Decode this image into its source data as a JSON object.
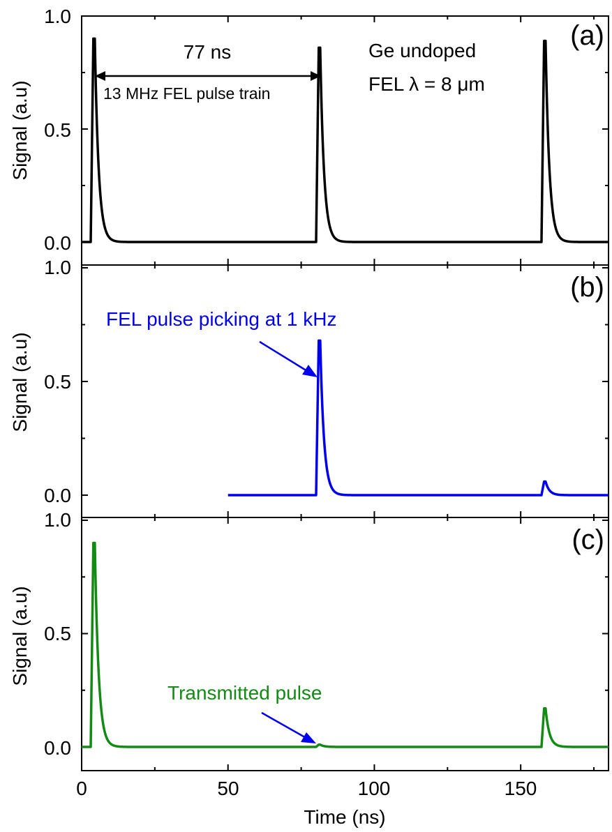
{
  "chart_data": [
    {
      "type": "line",
      "panel_label": "(a)",
      "xlim": [
        0,
        180
      ],
      "ylim": [
        0,
        1.0
      ],
      "ylabel": "Signal (a.u)",
      "xlabel": "",
      "y_ticks": [
        "1.0",
        "0.5",
        "0.0"
      ],
      "color": "#000000",
      "baseline_start": 0,
      "pulses": [
        {
          "t": 4,
          "amplitude": 0.9
        },
        {
          "t": 81,
          "amplitude": 0.86
        },
        {
          "t": 158,
          "amplitude": 0.89
        }
      ],
      "annotations": {
        "period": "77 ns",
        "train": "13 MHz FEL pulse train",
        "sample": "Ge undoped",
        "wavelength": "FEL λ = 8 μm"
      }
    },
    {
      "type": "line",
      "panel_label": "(b)",
      "xlim": [
        0,
        180
      ],
      "ylim": [
        0,
        1.0
      ],
      "ylabel": "Signal (a.u)",
      "xlabel": "",
      "y_ticks": [
        "1.0",
        "0.5",
        "0.0"
      ],
      "color": "#0000ee",
      "baseline_start": 50,
      "pulses": [
        {
          "t": 81,
          "amplitude": 0.68
        },
        {
          "t": 158,
          "amplitude": 0.06
        }
      ],
      "annotations": {
        "picking": "FEL pulse picking at 1 kHz"
      }
    },
    {
      "type": "line",
      "panel_label": "(c)",
      "xlim": [
        0,
        180
      ],
      "ylim": [
        0,
        1.0
      ],
      "ylabel": "Signal (a.u)",
      "xlabel": "Time (ns)",
      "y_ticks": [
        "1.0",
        "0.5",
        "0.0"
      ],
      "x_ticks": [
        "0",
        "50",
        "100",
        "150"
      ],
      "color": "#138a13",
      "baseline_start": 0,
      "pulses": [
        {
          "t": 4,
          "amplitude": 0.9
        },
        {
          "t": 81,
          "amplitude": 0.01
        },
        {
          "t": 158,
          "amplitude": 0.17
        }
      ],
      "annotations": {
        "transmitted": "Transmitted pulse"
      }
    }
  ]
}
